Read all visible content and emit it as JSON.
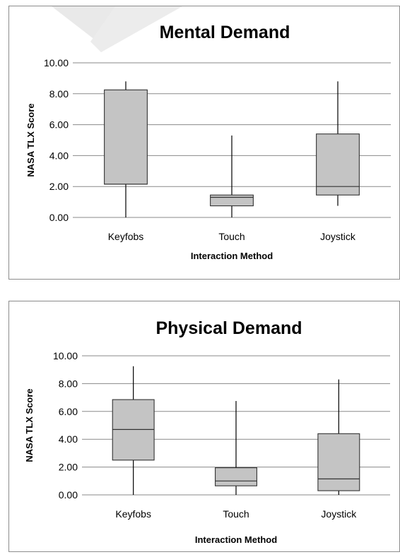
{
  "chart_data": [
    {
      "type": "box",
      "title": "Mental Demand",
      "xlabel": "Interaction Method",
      "ylabel": "NASA TLX Score",
      "ylim": [
        0,
        10
      ],
      "yticks": [
        "0.00",
        "2.00",
        "4.00",
        "6.00",
        "8.00",
        "10.00"
      ],
      "grid": true,
      "categories": [
        "Keyfobs",
        "Touch",
        "Joystick"
      ],
      "boxes": [
        {
          "min": 0.0,
          "q1": 2.15,
          "median": 2.15,
          "q3": 8.25,
          "max": 8.8
        },
        {
          "min": 0.0,
          "q1": 0.75,
          "median": 1.3,
          "q3": 1.45,
          "max": 5.3
        },
        {
          "min": 0.75,
          "q1": 1.45,
          "median": 2.0,
          "q3": 5.4,
          "max": 8.8
        }
      ]
    },
    {
      "type": "box",
      "title": "Physical Demand",
      "xlabel": "Interaction Method",
      "ylabel": "NASA TLX Score",
      "ylim": [
        0,
        10
      ],
      "yticks": [
        "0.00",
        "2.00",
        "4.00",
        "6.00",
        "8.00",
        "10.00"
      ],
      "grid": true,
      "categories": [
        "Keyfobs",
        "Touch",
        "Joystick"
      ],
      "boxes": [
        {
          "min": 0.0,
          "q1": 2.5,
          "median": 4.7,
          "q3": 6.85,
          "max": 9.25
        },
        {
          "min": 0.0,
          "q1": 0.65,
          "median": 1.0,
          "q3": 1.95,
          "max": 6.75
        },
        {
          "min": 0.0,
          "q1": 0.3,
          "median": 1.15,
          "q3": 4.4,
          "max": 8.3
        }
      ]
    }
  ],
  "colors": {
    "box_fill": "#c4c4c4",
    "box_stroke": "#333333",
    "grid": "#8a8a8a",
    "border": "#8c8c8c",
    "watermark": "#e6e6e6"
  }
}
